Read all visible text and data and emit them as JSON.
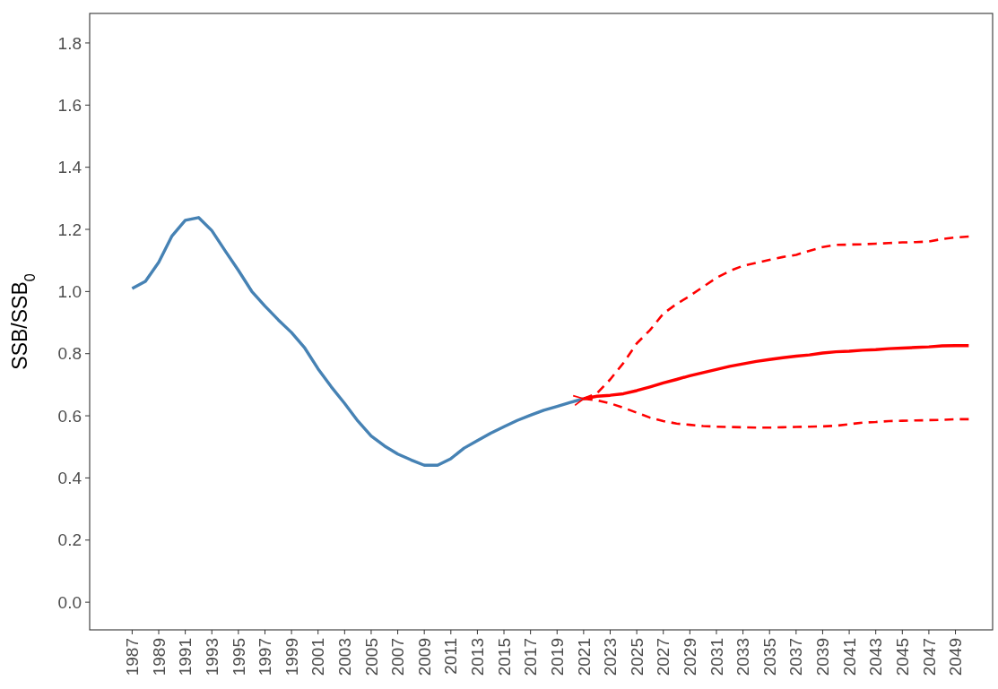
{
  "chart_data": {
    "type": "line",
    "ylabel": "SSB/SSB$_{0}$",
    "xlim": [
      1983.8,
      2051.8
    ],
    "ylim": [
      -0.089,
      1.895
    ],
    "xticks": [
      1987,
      1989,
      1991,
      1993,
      1995,
      1997,
      1999,
      2001,
      2003,
      2005,
      2007,
      2009,
      2011,
      2013,
      2015,
      2017,
      2019,
      2021,
      2023,
      2025,
      2027,
      2029,
      2031,
      2033,
      2035,
      2037,
      2039,
      2041,
      2043,
      2045,
      2047,
      2049
    ],
    "yticks": [
      {
        "value": 0,
        "label": "0.0"
      },
      {
        "value": 0.2,
        "label": "0.2"
      },
      {
        "value": 0.4,
        "label": "0.4"
      },
      {
        "value": 0.6,
        "label": "0.6"
      },
      {
        "value": 0.8,
        "label": "0.8"
      },
      {
        "value": 1,
        "label": "1.0"
      },
      {
        "value": 1.2,
        "label": "1.2"
      },
      {
        "value": 1.4,
        "label": "1.4"
      },
      {
        "value": 1.6,
        "label": "1.6"
      },
      {
        "value": 1.8,
        "label": "1.8"
      }
    ],
    "grid": false,
    "series": [
      {
        "color": "#4682b4",
        "line_style": "solid",
        "x": [
          1987,
          1988,
          1989,
          1990,
          1991,
          1992,
          1993,
          1994,
          1995,
          1996,
          1997,
          1998,
          1999,
          2000,
          2001,
          2002,
          2003,
          2004,
          2005,
          2006,
          2007,
          2008,
          2009,
          2010,
          2011,
          2012,
          2013,
          2014,
          2015,
          2016,
          2017,
          2018,
          2019,
          2020,
          2021
        ],
        "values": [
          1.01,
          1.033,
          1.094,
          1.179,
          1.229,
          1.238,
          1.196,
          1.131,
          1.068,
          1.001,
          0.953,
          0.909,
          0.868,
          0.818,
          0.751,
          0.693,
          0.64,
          0.583,
          0.535,
          0.503,
          0.477,
          0.458,
          0.441,
          0.441,
          0.462,
          0.496,
          0.52,
          0.544,
          0.565,
          0.585,
          0.602,
          0.618,
          0.63,
          0.643,
          0.655
        ]
      },
      {
        "color": "#ff0000",
        "line_style": "solid",
        "x": [
          2021,
          2022,
          2023,
          2024,
          2025,
          2026,
          2027,
          2028,
          2029,
          2030,
          2031,
          2032,
          2033,
          2034,
          2035,
          2036,
          2037,
          2038,
          2039,
          2040,
          2041,
          2042,
          2043,
          2044,
          2045,
          2046,
          2047,
          2048,
          2049,
          2050
        ],
        "values": [
          0.655,
          0.663,
          0.666,
          0.671,
          0.681,
          0.693,
          0.706,
          0.717,
          0.729,
          0.739,
          0.749,
          0.759,
          0.767,
          0.775,
          0.781,
          0.787,
          0.792,
          0.796,
          0.802,
          0.806,
          0.808,
          0.811,
          0.813,
          0.816,
          0.818,
          0.82,
          0.822,
          0.825,
          0.826,
          0.826
        ]
      },
      {
        "color": "#ff0000",
        "line_style": "dashed",
        "x": [
          2021,
          2022,
          2023,
          2024,
          2025,
          2026,
          2027,
          2028,
          2029,
          2030,
          2031,
          2032,
          2033,
          2034,
          2035,
          2036,
          2037,
          2038,
          2039,
          2040,
          2041,
          2042,
          2043,
          2044,
          2045,
          2046,
          2047,
          2048,
          2049,
          2050
        ],
        "values": [
          0.655,
          0.672,
          0.717,
          0.77,
          0.833,
          0.876,
          0.929,
          0.96,
          0.986,
          1.015,
          1.044,
          1.066,
          1.083,
          1.092,
          1.102,
          1.111,
          1.118,
          1.131,
          1.143,
          1.15,
          1.151,
          1.152,
          1.154,
          1.156,
          1.158,
          1.159,
          1.161,
          1.169,
          1.174,
          1.177
        ]
      },
      {
        "color": "#ff0000",
        "line_style": "dashed",
        "x": [
          2021,
          2022,
          2023,
          2024,
          2025,
          2026,
          2027,
          2028,
          2029,
          2030,
          2031,
          2032,
          2033,
          2034,
          2035,
          2036,
          2037,
          2038,
          2039,
          2040,
          2041,
          2042,
          2043,
          2044,
          2045,
          2046,
          2047,
          2048,
          2049,
          2050
        ],
        "values": [
          0.655,
          0.65,
          0.64,
          0.626,
          0.61,
          0.594,
          0.583,
          0.575,
          0.571,
          0.567,
          0.565,
          0.564,
          0.563,
          0.562,
          0.562,
          0.563,
          0.564,
          0.565,
          0.566,
          0.568,
          0.573,
          0.578,
          0.58,
          0.583,
          0.584,
          0.585,
          0.586,
          0.587,
          0.589,
          0.589
        ]
      }
    ]
  }
}
